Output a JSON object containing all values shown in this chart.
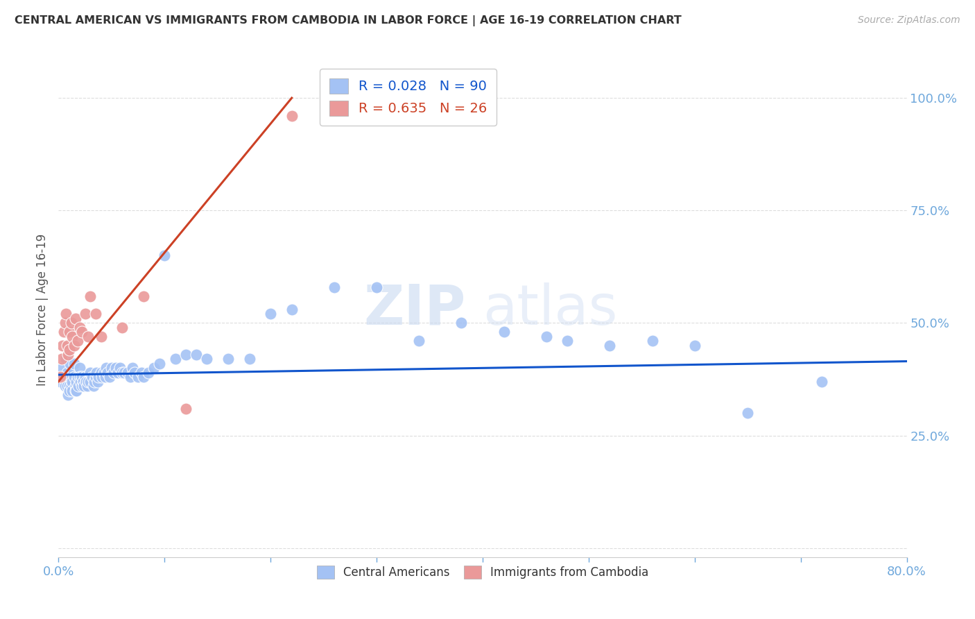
{
  "title": "CENTRAL AMERICAN VS IMMIGRANTS FROM CAMBODIA IN LABOR FORCE | AGE 16-19 CORRELATION CHART",
  "source": "Source: ZipAtlas.com",
  "ylabel": "In Labor Force | Age 16-19",
  "ytick_labels": [
    "",
    "25.0%",
    "50.0%",
    "75.0%",
    "100.0%"
  ],
  "ytick_positions": [
    0.0,
    0.25,
    0.5,
    0.75,
    1.0
  ],
  "xlim": [
    0.0,
    0.8
  ],
  "ylim": [
    -0.02,
    1.08
  ],
  "blue_R": 0.028,
  "blue_N": 90,
  "pink_R": 0.635,
  "pink_N": 26,
  "blue_color": "#a4c2f4",
  "pink_color": "#ea9999",
  "blue_line_color": "#1155cc",
  "pink_line_color": "#cc4125",
  "legend_label_blue": "Central Americans",
  "legend_label_pink": "Immigrants from Cambodia",
  "watermark_zip": "ZIP",
  "watermark_atlas": "atlas",
  "blue_scatter_x": [
    0.002,
    0.004,
    0.005,
    0.006,
    0.007,
    0.008,
    0.008,
    0.009,
    0.01,
    0.01,
    0.01,
    0.011,
    0.012,
    0.012,
    0.013,
    0.013,
    0.014,
    0.015,
    0.015,
    0.016,
    0.016,
    0.017,
    0.017,
    0.018,
    0.019,
    0.02,
    0.02,
    0.021,
    0.022,
    0.022,
    0.023,
    0.024,
    0.025,
    0.026,
    0.027,
    0.028,
    0.03,
    0.03,
    0.032,
    0.033,
    0.034,
    0.035,
    0.036,
    0.037,
    0.038,
    0.04,
    0.041,
    0.043,
    0.044,
    0.045,
    0.046,
    0.048,
    0.05,
    0.052,
    0.054,
    0.056,
    0.058,
    0.06,
    0.062,
    0.065,
    0.068,
    0.07,
    0.072,
    0.075,
    0.078,
    0.08,
    0.085,
    0.09,
    0.095,
    0.1,
    0.11,
    0.12,
    0.13,
    0.14,
    0.16,
    0.18,
    0.2,
    0.22,
    0.26,
    0.3,
    0.34,
    0.38,
    0.42,
    0.46,
    0.48,
    0.52,
    0.56,
    0.6,
    0.65,
    0.72
  ],
  "blue_scatter_y": [
    0.37,
    0.4,
    0.38,
    0.36,
    0.42,
    0.39,
    0.36,
    0.34,
    0.38,
    0.36,
    0.35,
    0.41,
    0.38,
    0.36,
    0.37,
    0.35,
    0.39,
    0.41,
    0.38,
    0.36,
    0.35,
    0.37,
    0.35,
    0.38,
    0.36,
    0.4,
    0.38,
    0.37,
    0.38,
    0.36,
    0.37,
    0.36,
    0.38,
    0.37,
    0.36,
    0.37,
    0.39,
    0.37,
    0.38,
    0.36,
    0.37,
    0.38,
    0.39,
    0.37,
    0.38,
    0.39,
    0.38,
    0.39,
    0.38,
    0.4,
    0.39,
    0.38,
    0.4,
    0.39,
    0.4,
    0.39,
    0.4,
    0.39,
    0.39,
    0.39,
    0.38,
    0.4,
    0.39,
    0.38,
    0.39,
    0.38,
    0.39,
    0.4,
    0.41,
    0.65,
    0.42,
    0.43,
    0.43,
    0.42,
    0.42,
    0.42,
    0.52,
    0.53,
    0.58,
    0.58,
    0.46,
    0.5,
    0.48,
    0.47,
    0.46,
    0.45,
    0.46,
    0.45,
    0.3,
    0.37
  ],
  "pink_scatter_x": [
    0.002,
    0.003,
    0.004,
    0.005,
    0.006,
    0.007,
    0.008,
    0.009,
    0.01,
    0.01,
    0.012,
    0.013,
    0.015,
    0.016,
    0.018,
    0.02,
    0.022,
    0.025,
    0.028,
    0.03,
    0.035,
    0.04,
    0.06,
    0.08,
    0.12,
    0.22
  ],
  "pink_scatter_y": [
    0.38,
    0.42,
    0.45,
    0.48,
    0.5,
    0.52,
    0.45,
    0.43,
    0.48,
    0.44,
    0.5,
    0.47,
    0.45,
    0.51,
    0.46,
    0.49,
    0.48,
    0.52,
    0.47,
    0.56,
    0.52,
    0.47,
    0.49,
    0.56,
    0.31,
    0.96
  ],
  "pink_line_x0": 0.0,
  "pink_line_y0": 0.37,
  "pink_line_x1": 0.22,
  "pink_line_y1": 1.0,
  "blue_line_x0": 0.0,
  "blue_line_y0": 0.385,
  "blue_line_x1": 0.8,
  "blue_line_y1": 0.415
}
